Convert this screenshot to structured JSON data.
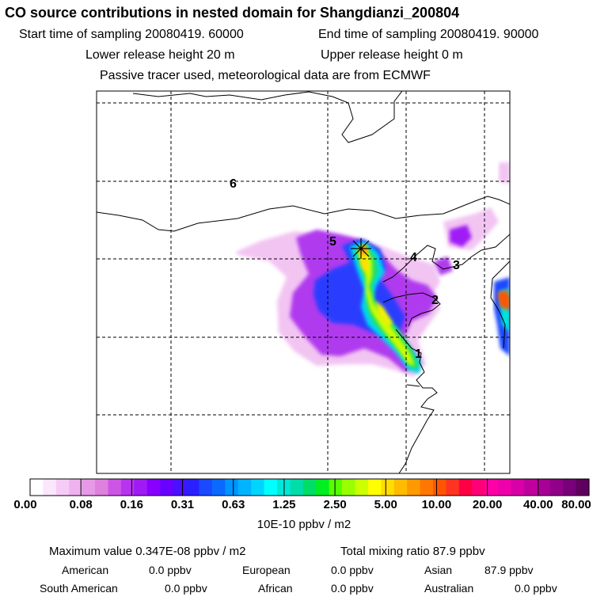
{
  "header": {
    "title": "CO  source contributions in nested domain for Shangdianzi_200804",
    "start_label": "Start time of sampling 20080419. 60000",
    "end_label": "End time of sampling 20080419. 90000",
    "lower_label": "Lower release height   20 m",
    "upper_label": "Upper release height    0 m",
    "tracer_note": "Passive tracer used, meteorological data are from ECMWF"
  },
  "chart_data": {
    "type": "heatmap",
    "title": "CO  source contributions in nested domain for Shangdianzi_200804",
    "region_labels": [
      "1",
      "2",
      "3",
      "4",
      "5",
      "6"
    ],
    "receptor": "Shangdianzi",
    "colorbar": {
      "ticks": [
        "0.00",
        "0.08",
        "0.16",
        "0.31",
        "0.63",
        "1.25",
        "2.50",
        "5.00",
        "10.00",
        "20.00",
        "40.00",
        "80.00"
      ],
      "colors": [
        "#ffffff",
        "#fbe6fb",
        "#f6ccf6",
        "#eeb2ee",
        "#e699e6",
        "#de80de",
        "#cc55e6",
        "#b833ee",
        "#a01af6",
        "#8800ff",
        "#6a00ff",
        "#4a10ff",
        "#2a20ff",
        "#1a4aff",
        "#0a6aff",
        "#0094ff",
        "#00b4ff",
        "#00d4ff",
        "#00ffff",
        "#00e8d8",
        "#00ddaa",
        "#00dd66",
        "#00ee22",
        "#55ff00",
        "#99ff00",
        "#ccff00",
        "#ffff00",
        "#ffdd00",
        "#ffbb00",
        "#ff9900",
        "#ff7700",
        "#ff5500",
        "#ff3322",
        "#ff0044",
        "#ff0077",
        "#ff00a6",
        "#ee00aa",
        "#d800a6",
        "#c0009e",
        "#a80096",
        "#900088",
        "#780078",
        "#60005e"
      ],
      "unit": "10E-10 ppbv / m2"
    }
  },
  "footer": {
    "max_label": "Maximum value  0.347E-08 ppbv / m2",
    "total_label": "Total mixing ratio       87.9 ppbv",
    "american_label": "American",
    "american_value": "0.0 ppbv",
    "european_label": "European",
    "european_value": "0.0 ppbv",
    "asian_label": "Asian",
    "asian_value": "87.9 ppbv",
    "samerican_label": "South American",
    "samerican_value": "0.0 ppbv",
    "african_label": "African",
    "african_value": "0.0 ppbv",
    "australian_label": "Australian",
    "australian_value": "0.0 ppbv"
  }
}
